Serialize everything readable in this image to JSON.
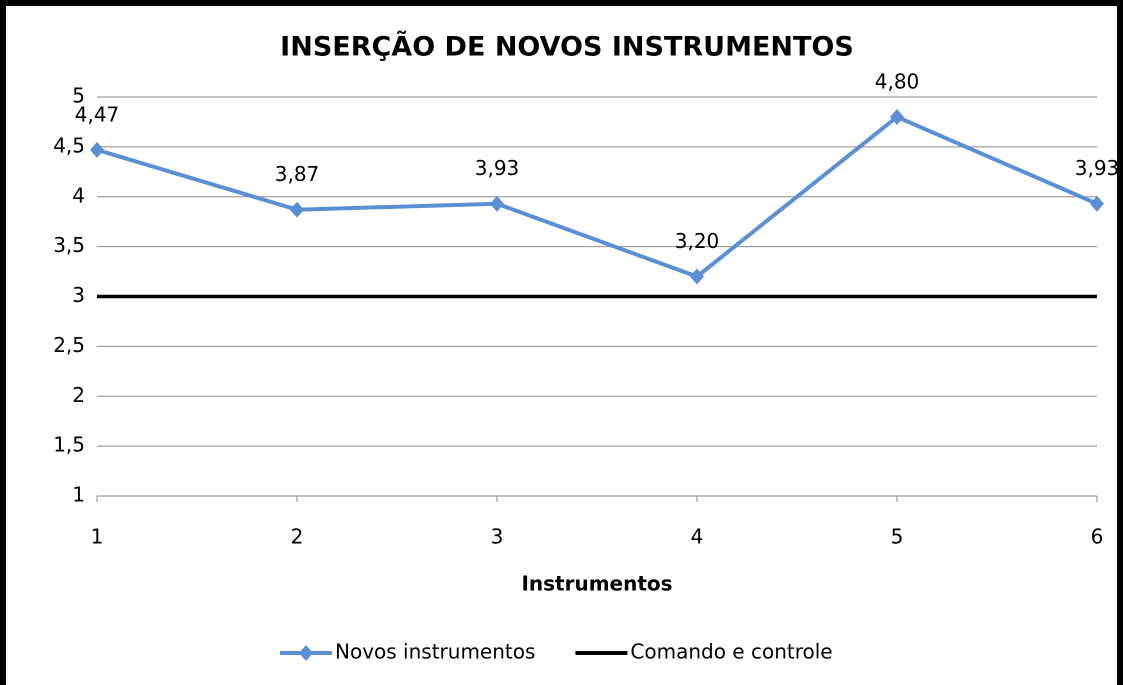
{
  "chart_data": {
    "type": "line",
    "title": "INSERÇÃO DE NOVOS INSTRUMENTOS",
    "x_label": "Instrumentos",
    "categories": [
      "1",
      "2",
      "3",
      "4",
      "5",
      "6"
    ],
    "series": [
      {
        "name": "Novos instrumentos",
        "color": "#5b8fd4",
        "marker": "diamond",
        "values": [
          4.47,
          3.87,
          3.93,
          3.2,
          4.8,
          3.93
        ],
        "value_labels": [
          "4,47",
          "3,87",
          "3,93",
          "3,20",
          "4,80",
          "3,93"
        ]
      },
      {
        "name": "Comando e controle",
        "color": "#000000",
        "values": [
          3,
          3,
          3,
          3,
          3,
          3
        ]
      }
    ],
    "ylim": [
      1,
      5
    ],
    "yticks": [
      1,
      {
        "value": 1.5,
        "label": "1,5"
      },
      2,
      {
        "value": 2.5,
        "label": "2,5"
      },
      3,
      {
        "value": 3.5,
        "label": "3,5"
      },
      4,
      {
        "value": 4.5,
        "label": "4,5"
      },
      5
    ],
    "grid": true,
    "legend": "bottom"
  }
}
